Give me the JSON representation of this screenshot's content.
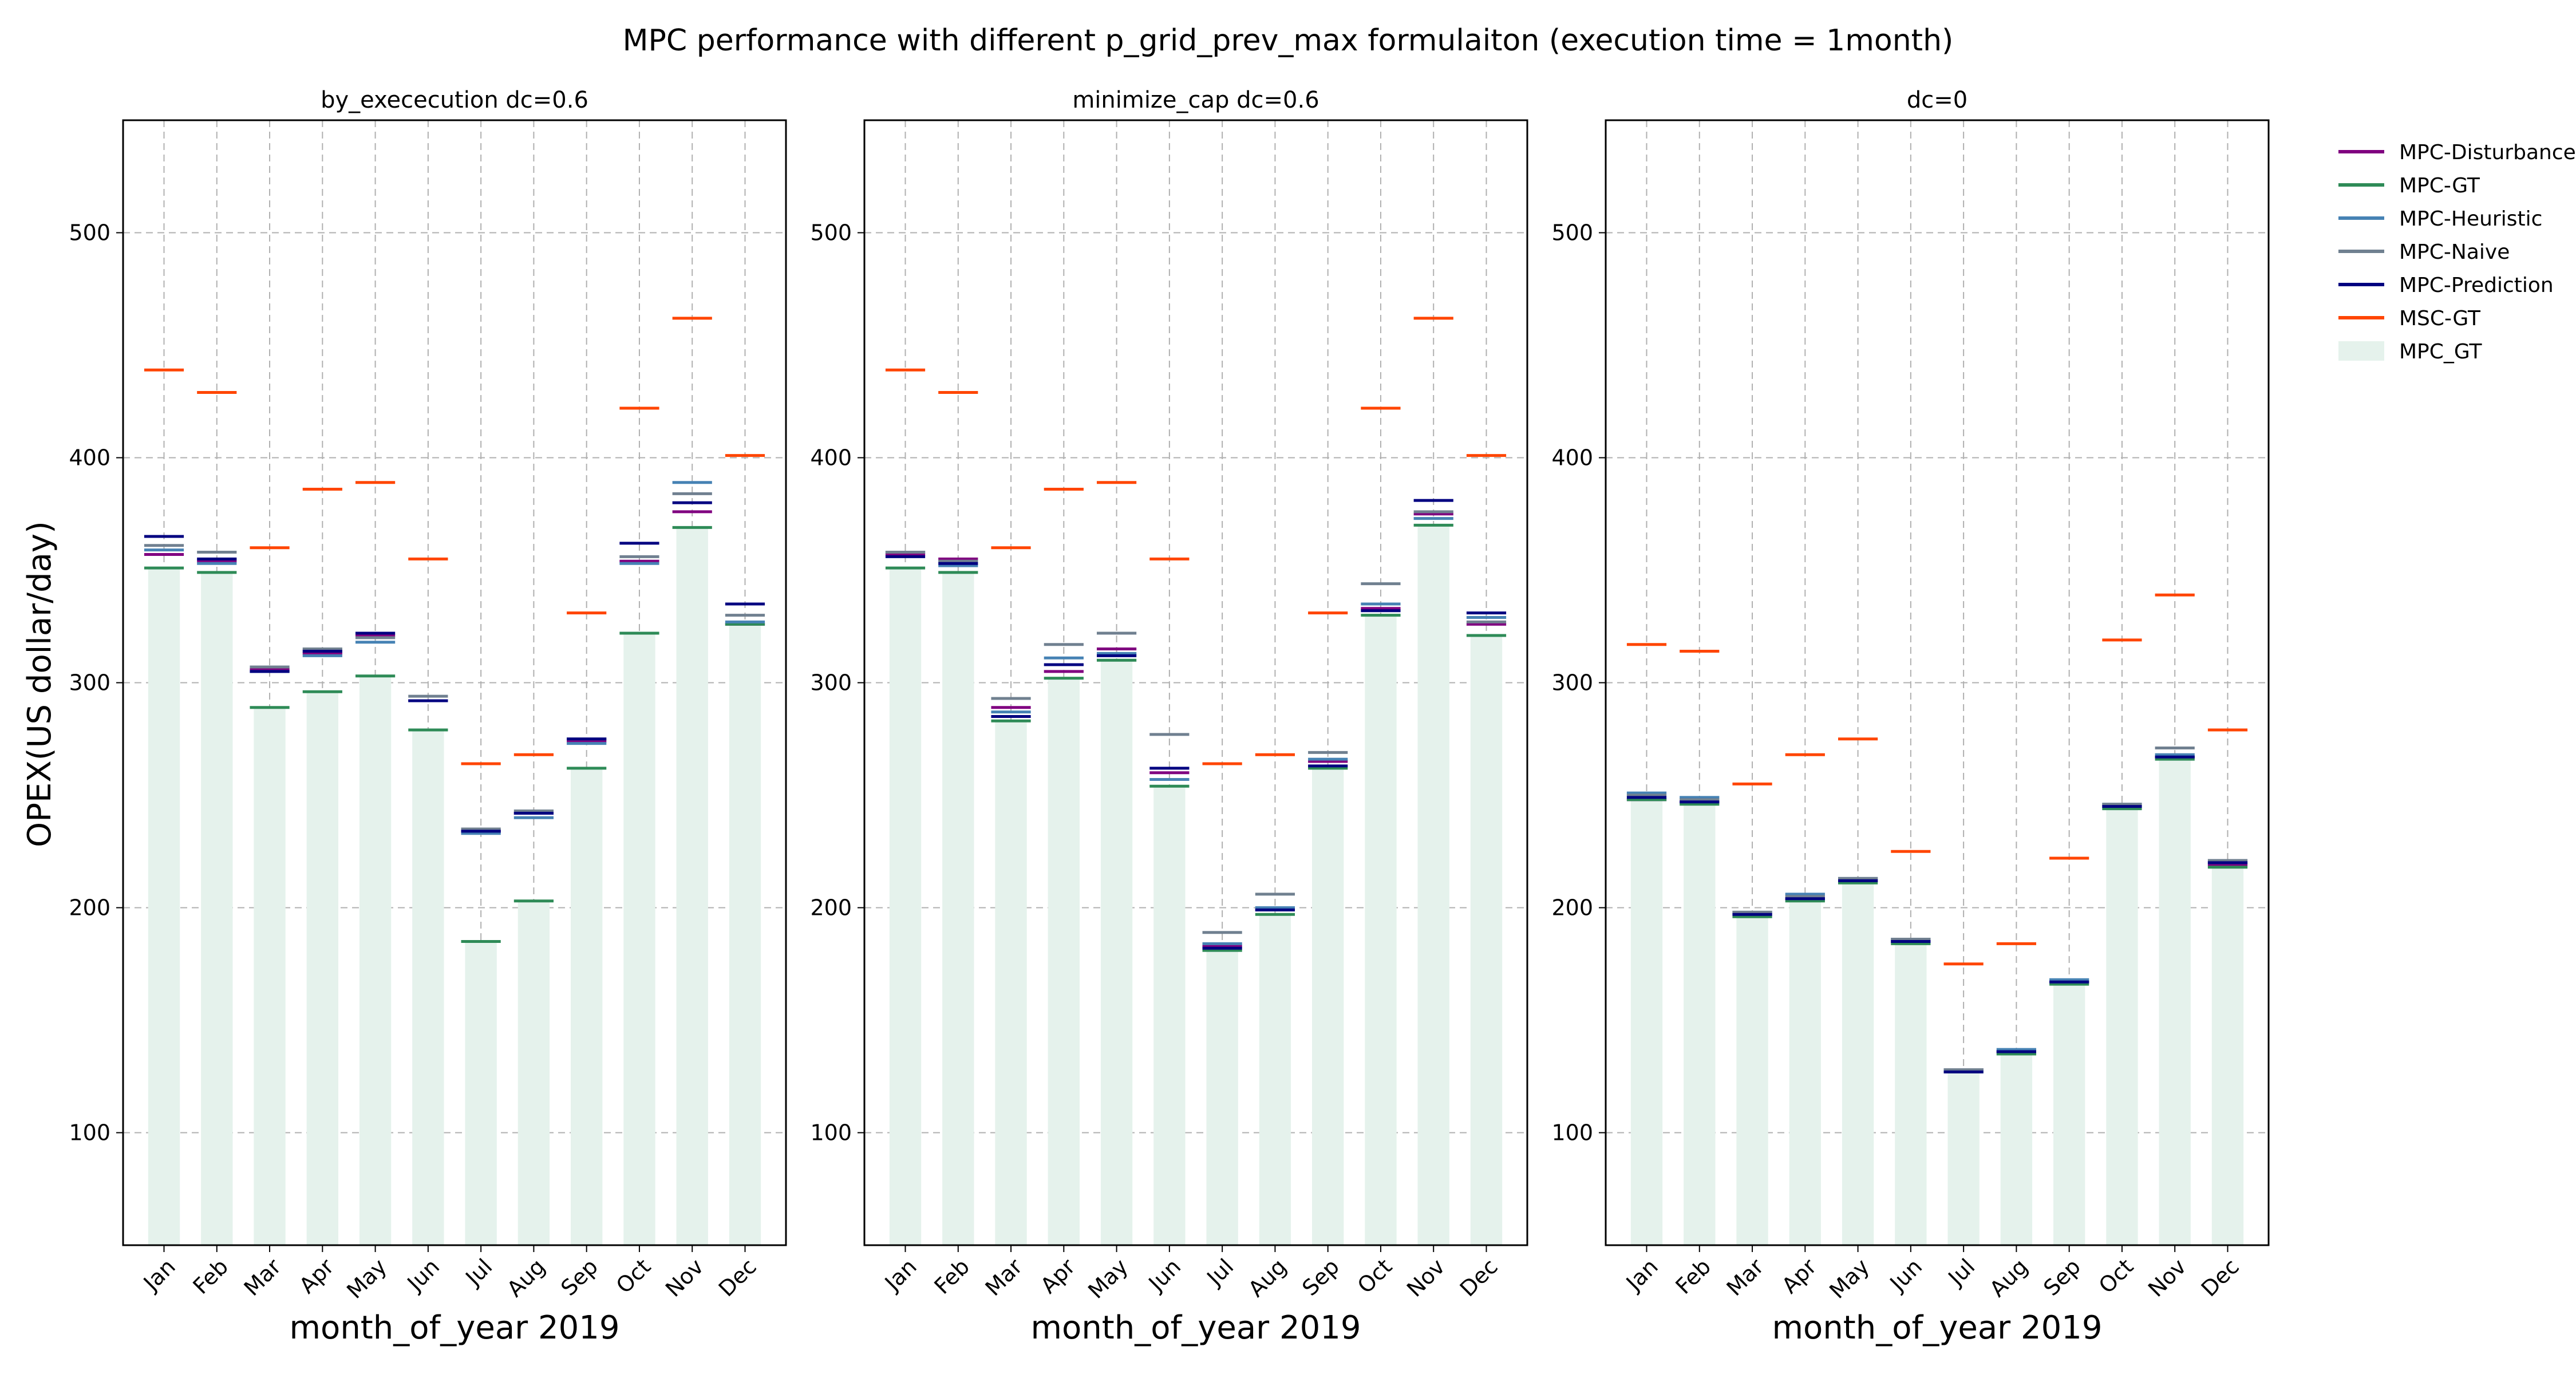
{
  "title": "MPC performance with different p_grid_prev_max formulaiton (execution time = 1month)",
  "ylabel": "OPEX(US dollar/day)",
  "legend": {
    "placement": "right",
    "entries": [
      {
        "name": "MPC-Disturbance",
        "color": "#800080",
        "kind": "line"
      },
      {
        "name": "MPC-GT",
        "color": "#2e8b57",
        "kind": "line"
      },
      {
        "name": "MPC-Heuristic",
        "color": "#4682b4",
        "kind": "line"
      },
      {
        "name": "MPC-Naive",
        "color": "#708090",
        "kind": "line"
      },
      {
        "name": "MPC-Prediction",
        "color": "#000080",
        "kind": "line"
      },
      {
        "name": "MSC-GT",
        "color": "#ff4500",
        "kind": "line"
      },
      {
        "name": "MPC_GT",
        "color": "#e5f2ec",
        "kind": "bar"
      }
    ]
  },
  "chart_data": [
    {
      "type": "bar",
      "title": "by_exececution dc=0.6",
      "xlabel": "month_of_year 2019",
      "ylabel": "OPEX(US dollar/day)",
      "ylim": [
        50,
        550
      ],
      "yticks": [
        100,
        200,
        300,
        400,
        500
      ],
      "grid": true,
      "categories": [
        "Jan",
        "Feb",
        "Mar",
        "Apr",
        "May",
        "Jun",
        "Jul",
        "Aug",
        "Sep",
        "Oct",
        "Nov",
        "Dec"
      ],
      "bars": {
        "name": "MPC_GT",
        "values": [
          351,
          349,
          289,
          296,
          303,
          279,
          185,
          203,
          262,
          322,
          369,
          326
        ]
      },
      "series": [
        {
          "name": "MPC-Disturbance",
          "values": [
            357,
            354,
            306,
            313,
            321,
            292,
            234,
            242,
            274,
            354,
            376,
            326
          ]
        },
        {
          "name": "MPC-GT",
          "values": [
            351,
            349,
            289,
            296,
            303,
            279,
            185,
            203,
            262,
            322,
            369,
            326
          ]
        },
        {
          "name": "MPC-Heuristic",
          "values": [
            359,
            353,
            305,
            312,
            318,
            292,
            233,
            240,
            273,
            353,
            389,
            327
          ]
        },
        {
          "name": "MPC-Naive",
          "values": [
            361,
            358,
            307,
            315,
            320,
            294,
            235,
            243,
            275,
            356,
            384,
            330
          ]
        },
        {
          "name": "MPC-Prediction",
          "values": [
            365,
            355,
            305,
            314,
            322,
            292,
            234,
            242,
            275,
            362,
            380,
            335
          ]
        },
        {
          "name": "MSC-GT",
          "values": [
            439,
            429,
            360,
            386,
            389,
            355,
            264,
            268,
            331,
            422,
            462,
            401
          ]
        }
      ]
    },
    {
      "type": "bar",
      "title": "minimize_cap dc=0.6",
      "xlabel": "month_of_year 2019",
      "ylabel": "",
      "ylim": [
        50,
        550
      ],
      "yticks": [
        100,
        200,
        300,
        400,
        500
      ],
      "grid": true,
      "categories": [
        "Jan",
        "Feb",
        "Mar",
        "Apr",
        "May",
        "Jun",
        "Jul",
        "Aug",
        "Sep",
        "Oct",
        "Nov",
        "Dec"
      ],
      "bars": {
        "name": "MPC_GT",
        "values": [
          351,
          349,
          283,
          302,
          310,
          254,
          181,
          197,
          262,
          330,
          370,
          321
        ]
      },
      "series": [
        {
          "name": "MPC-Disturbance",
          "values": [
            357,
            355,
            289,
            305,
            315,
            260,
            183,
            199,
            265,
            333,
            375,
            326
          ]
        },
        {
          "name": "MPC-GT",
          "values": [
            351,
            349,
            283,
            302,
            310,
            254,
            181,
            197,
            262,
            330,
            370,
            321
          ]
        },
        {
          "name": "MPC-Heuristic",
          "values": [
            358,
            352,
            287,
            311,
            313,
            257,
            184,
            200,
            266,
            335,
            373,
            329
          ]
        },
        {
          "name": "MPC-Naive",
          "values": [
            358,
            354,
            293,
            317,
            322,
            277,
            189,
            206,
            269,
            344,
            376,
            327
          ]
        },
        {
          "name": "MPC-Prediction",
          "values": [
            356,
            353,
            285,
            308,
            312,
            262,
            182,
            199,
            263,
            332,
            381,
            331
          ]
        },
        {
          "name": "MSC-GT",
          "values": [
            439,
            429,
            360,
            386,
            389,
            355,
            264,
            268,
            331,
            422,
            462,
            401
          ]
        }
      ]
    },
    {
      "type": "bar",
      "title": "dc=0",
      "xlabel": "month_of_year 2019",
      "ylabel": "",
      "ylim": [
        50,
        550
      ],
      "yticks": [
        100,
        200,
        300,
        400,
        500
      ],
      "grid": true,
      "categories": [
        "Jan",
        "Feb",
        "Mar",
        "Apr",
        "May",
        "Jun",
        "Jul",
        "Aug",
        "Sep",
        "Oct",
        "Nov",
        "Dec"
      ],
      "bars": {
        "name": "MPC_GT",
        "values": [
          248,
          246,
          196,
          203,
          211,
          184,
          127,
          135,
          166,
          244,
          266,
          218
        ]
      },
      "series": [
        {
          "name": "MPC-Disturbance",
          "values": [
            248,
            247,
            197,
            204,
            212,
            185,
            128,
            136,
            167,
            245,
            267,
            219
          ]
        },
        {
          "name": "MPC-GT",
          "values": [
            248,
            246,
            196,
            203,
            211,
            184,
            127,
            135,
            166,
            244,
            266,
            218
          ]
        },
        {
          "name": "MPC-Heuristic",
          "values": [
            251,
            249,
            198,
            206,
            213,
            186,
            128,
            137,
            168,
            246,
            268,
            220
          ]
        },
        {
          "name": "MPC-Naive",
          "values": [
            250,
            248,
            198,
            205,
            213,
            186,
            128,
            136,
            167,
            246,
            271,
            221
          ]
        },
        {
          "name": "MPC-Prediction",
          "values": [
            249,
            247,
            197,
            204,
            212,
            185,
            127,
            136,
            167,
            245,
            267,
            220
          ]
        },
        {
          "name": "MSC-GT",
          "values": [
            317,
            314,
            255,
            268,
            275,
            225,
            175,
            184,
            222,
            319,
            339,
            279
          ]
        }
      ]
    }
  ]
}
